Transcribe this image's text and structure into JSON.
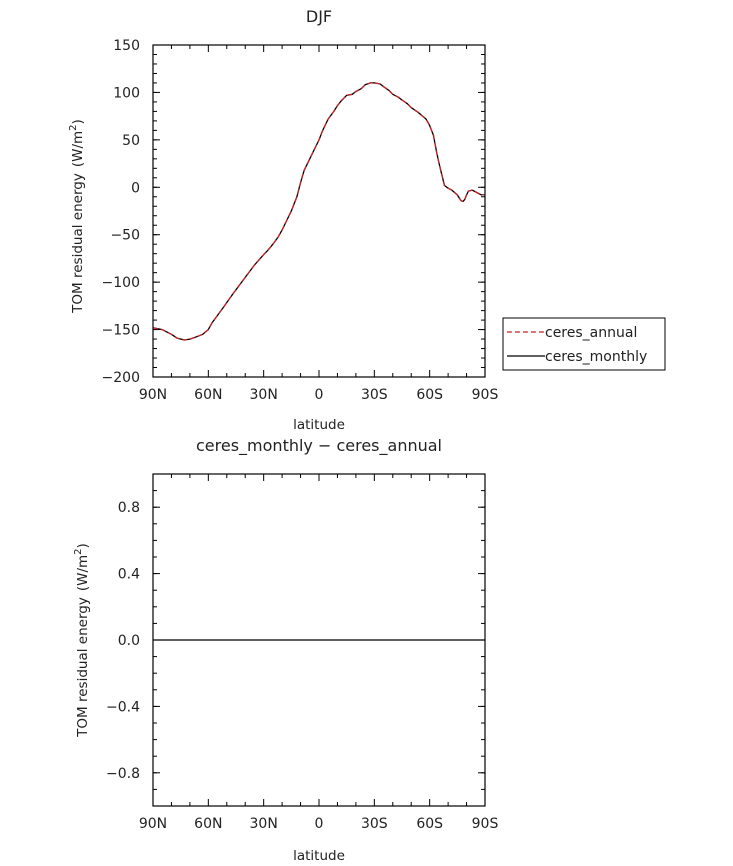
{
  "chart_data": [
    {
      "type": "line",
      "title": "DJF",
      "xlabel": "latitude",
      "ylabel": "TOM residual energy",
      "ylabel_unit": "(W/m",
      "ylabel_unit_sup": "2",
      "ylabel_unit_close": ")",
      "xlim": [
        90,
        -90
      ],
      "ylim": [
        -200,
        150
      ],
      "x_ticks": [
        90,
        60,
        30,
        0,
        -30,
        -60,
        -90
      ],
      "x_tick_labels": [
        "90N",
        "60N",
        "30N",
        "0",
        "30S",
        "60S",
        "90S"
      ],
      "y_ticks": [
        150,
        100,
        50,
        0,
        -50,
        -100,
        -150,
        -200
      ],
      "y_tick_labels": [
        "150",
        "100",
        "50",
        "0",
        "−50",
        "−100",
        "−150",
        "−200"
      ],
      "legend": {
        "placement": "right",
        "entries": [
          "ceres_annual",
          "ceres_monthly"
        ]
      },
      "series": [
        {
          "name": "ceres_annual",
          "color": "#cc2222",
          "dash": "dashed",
          "x": [
            90,
            85,
            80,
            77,
            73,
            70,
            67,
            63,
            60,
            58,
            55,
            52,
            48,
            45,
            40,
            35,
            30,
            28,
            25,
            22,
            20,
            18,
            15,
            12,
            10,
            8,
            5,
            2,
            0,
            -2,
            -5,
            -8,
            -10,
            -12,
            -15,
            -18,
            -20,
            -23,
            -25,
            -28,
            -30,
            -33,
            -35,
            -38,
            -40,
            -43,
            -45,
            -48,
            -50,
            -53,
            -55,
            -58,
            -60,
            -62,
            -63,
            -64,
            -65,
            -66,
            -67,
            -68,
            -70,
            -72,
            -75,
            -77,
            -78,
            -79,
            -80,
            -81,
            -83,
            -85,
            -87,
            -88,
            -90
          ],
          "y": [
            -148,
            -150,
            -155,
            -159,
            -161,
            -160,
            -158,
            -155,
            -150,
            -143,
            -135,
            -127,
            -116,
            -108,
            -95,
            -82,
            -71,
            -67,
            -60,
            -52,
            -45,
            -37,
            -25,
            -10,
            5,
            18,
            30,
            42,
            50,
            60,
            72,
            80,
            86,
            91,
            97,
            98,
            101,
            104,
            108,
            110,
            110,
            109,
            106,
            102,
            98,
            95,
            92,
            88,
            84,
            80,
            77,
            72,
            65,
            55,
            45,
            35,
            26,
            18,
            10,
            2,
            -1,
            -3,
            -8,
            -14,
            -15,
            -13,
            -8,
            -4,
            -3,
            -5,
            -7,
            -8,
            -8
          ]
        },
        {
          "name": "ceres_monthly",
          "color": "#000000",
          "dash": "solid",
          "x": [
            90,
            85,
            80,
            77,
            73,
            70,
            67,
            63,
            60,
            58,
            55,
            52,
            48,
            45,
            40,
            35,
            30,
            28,
            25,
            22,
            20,
            18,
            15,
            12,
            10,
            8,
            5,
            2,
            0,
            -2,
            -5,
            -8,
            -10,
            -12,
            -15,
            -18,
            -20,
            -23,
            -25,
            -28,
            -30,
            -33,
            -35,
            -38,
            -40,
            -43,
            -45,
            -48,
            -50,
            -53,
            -55,
            -58,
            -60,
            -62,
            -63,
            -64,
            -65,
            -66,
            -67,
            -68,
            -70,
            -72,
            -75,
            -77,
            -78,
            -79,
            -80,
            -81,
            -83,
            -85,
            -87,
            -88,
            -90
          ],
          "y": [
            -148,
            -150,
            -155,
            -159,
            -161,
            -160,
            -158,
            -155,
            -150,
            -143,
            -135,
            -127,
            -116,
            -108,
            -95,
            -82,
            -71,
            -67,
            -60,
            -52,
            -45,
            -37,
            -25,
            -10,
            5,
            18,
            30,
            42,
            50,
            60,
            72,
            80,
            86,
            91,
            97,
            98,
            101,
            104,
            108,
            110,
            110,
            109,
            106,
            102,
            98,
            95,
            92,
            88,
            84,
            80,
            77,
            72,
            65,
            55,
            45,
            35,
            26,
            18,
            10,
            2,
            -1,
            -3,
            -8,
            -14,
            -15,
            -13,
            -8,
            -4,
            -3,
            -5,
            -7,
            -8,
            -8
          ]
        }
      ]
    },
    {
      "type": "line",
      "title": "ceres_monthly − ceres_annual",
      "xlabel": "latitude",
      "ylabel": "TOM residual energy",
      "ylabel_unit": "(W/m",
      "ylabel_unit_sup": "2",
      "ylabel_unit_close": ")",
      "xlim": [
        90,
        -90
      ],
      "ylim": [
        -1.0,
        1.0
      ],
      "x_ticks": [
        90,
        60,
        30,
        0,
        -30,
        -60,
        -90
      ],
      "x_tick_labels": [
        "90N",
        "60N",
        "30N",
        "0",
        "30S",
        "60S",
        "90S"
      ],
      "y_ticks": [
        0.8,
        0.4,
        0.0,
        -0.4,
        -0.8
      ],
      "y_tick_labels": [
        "0.8",
        "0.4",
        "0.0",
        "−0.4",
        "−0.8"
      ],
      "series": [
        {
          "color": "#000000",
          "dash": "solid",
          "x": [
            90,
            -90
          ],
          "y": [
            0,
            0
          ]
        }
      ]
    }
  ]
}
